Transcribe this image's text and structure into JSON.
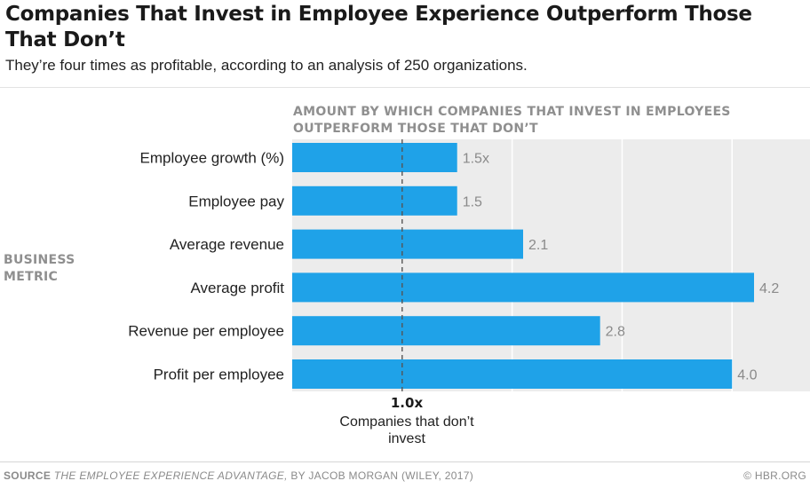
{
  "header": {
    "title": "Companies That Invest in Employee Experience Outperform Those That Don’t",
    "subtitle": "They’re four times as profitable, according to an analysis of 250 organizations."
  },
  "chart_data": {
    "type": "bar",
    "orientation": "horizontal",
    "title": "AMOUNT BY WHICH COMPANIES THAT INVEST IN EMPLOYEES OUTPERFORM THOSE THAT DON’T",
    "ylabel": "BUSINESS METRIC",
    "categories": [
      "Employee growth (%)",
      "Employee pay",
      "Average revenue",
      "Average profit",
      "Revenue per employee",
      "Profit per employee"
    ],
    "values": [
      1.5,
      1.5,
      2.1,
      4.2,
      2.8,
      4.0
    ],
    "value_labels": [
      "1.5x",
      "1.5",
      "2.1",
      "4.2",
      "2.8",
      "4.0"
    ],
    "xlim": [
      0,
      4.2
    ],
    "reference_line": {
      "value": 1.0,
      "label": "1.0x",
      "caption": "Companies that don’t invest",
      "style": "dashed"
    },
    "grid": true,
    "colors": {
      "bar": "#1fa2e8",
      "plot_background": "#ececec",
      "gridline": "#ffffff",
      "value_label": "#8a8a8a",
      "reference_line": "#555555"
    }
  },
  "footer": {
    "source_label": "SOURCE",
    "source_book": "THE EMPLOYEE EXPERIENCE ADVANTAGE,",
    "source_rest": " BY JACOB MORGAN (WILEY, 2017)",
    "credit": "© HBR.ORG"
  }
}
